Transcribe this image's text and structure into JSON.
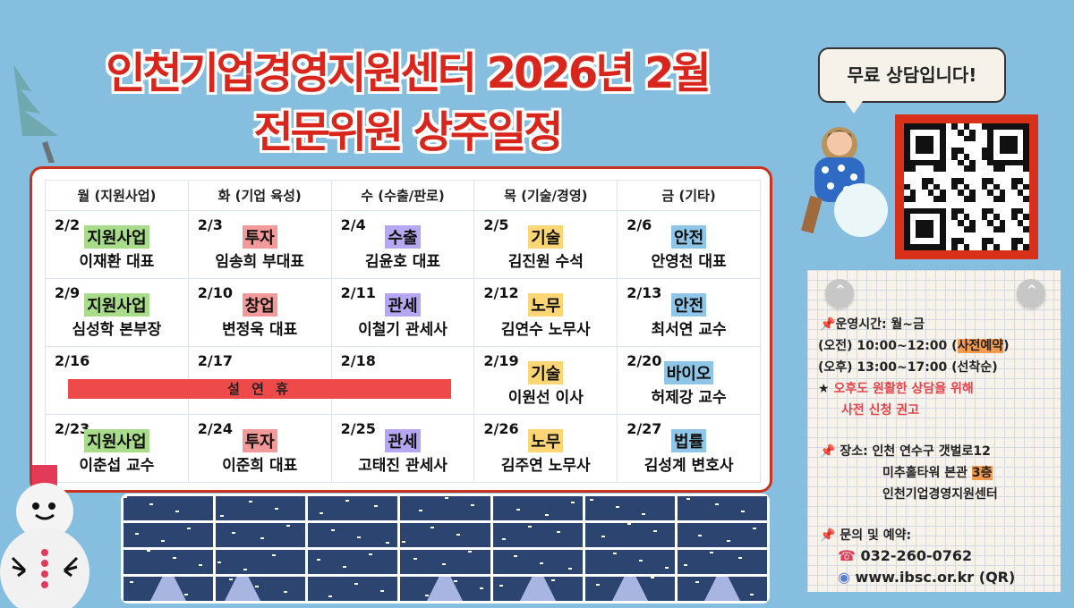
{
  "header": {
    "title_line1": "인천기업경영지원센터 2026년 2월",
    "title_line2": "전문위원 상주일정"
  },
  "colors": {
    "background": "#85bedf",
    "title_red": "#d9261c",
    "board_border": "#c9321f",
    "holiday_bar": "#ef4a4a",
    "tag_green": "#a9dc8a",
    "tag_pink": "#f29999",
    "tag_purple": "#b7a6f0",
    "tag_yellow": "#fcd575",
    "tag_blue": "#8fc5e6",
    "highlight_orange": "#f49a4e"
  },
  "schedule": {
    "columns": [
      "월 (지원사업)",
      "화 (기업 육성)",
      "수 (수출/판로)",
      "목 (기술/경영)",
      "금 (기타)"
    ],
    "weeks": [
      [
        {
          "date": "2/2",
          "tag": "지원사업",
          "tag_color": "#a9dc8a",
          "person": "이재환 대표"
        },
        {
          "date": "2/3",
          "tag": "투자",
          "tag_color": "#f29999",
          "person": "임송희 부대표"
        },
        {
          "date": "2/4",
          "tag": "수출",
          "tag_color": "#b7a6f0",
          "person": "김윤호 대표"
        },
        {
          "date": "2/5",
          "tag": "기술",
          "tag_color": "#fcd575",
          "person": "김진원 수석"
        },
        {
          "date": "2/6",
          "tag": "안전",
          "tag_color": "#8fc5e6",
          "person": "안영천 대표"
        }
      ],
      [
        {
          "date": "2/9",
          "tag": "지원사업",
          "tag_color": "#a9dc8a",
          "person": "심성학 본부장"
        },
        {
          "date": "2/10",
          "tag": "창업",
          "tag_color": "#f29999",
          "person": "변정욱 대표"
        },
        {
          "date": "2/11",
          "tag": "관세",
          "tag_color": "#b7a6f0",
          "person": "이철기 관세사"
        },
        {
          "date": "2/12",
          "tag": "노무",
          "tag_color": "#fcd575",
          "person": "김연수 노무사"
        },
        {
          "date": "2/13",
          "tag": "안전",
          "tag_color": "#8fc5e6",
          "person": "최서연 교수"
        }
      ],
      [
        {
          "date": "2/16",
          "tag": "",
          "tag_color": "",
          "person": ""
        },
        {
          "date": "2/17",
          "tag": "",
          "tag_color": "",
          "person": ""
        },
        {
          "date": "2/18",
          "tag": "",
          "tag_color": "",
          "person": ""
        },
        {
          "date": "2/19",
          "tag": "기술",
          "tag_color": "#fcd575",
          "person": "이원선 이사"
        },
        {
          "date": "2/20",
          "tag": "바이오",
          "tag_color": "#8fc5e6",
          "person": "허제강 교수"
        }
      ],
      [
        {
          "date": "2/23",
          "tag": "지원사업",
          "tag_color": "#a9dc8a",
          "person": "이춘섭 교수"
        },
        {
          "date": "2/24",
          "tag": "투자",
          "tag_color": "#f29999",
          "person": "이준희 대표"
        },
        {
          "date": "2/25",
          "tag": "관세",
          "tag_color": "#b7a6f0",
          "person": "고태진 관세사"
        },
        {
          "date": "2/26",
          "tag": "노무",
          "tag_color": "#fcd575",
          "person": "김주연 노무사"
        },
        {
          "date": "2/27",
          "tag": "법률",
          "tag_color": "#8fc5e6",
          "person": "김성계 변호사"
        }
      ]
    ],
    "holiday_label": "설 연 휴"
  },
  "sidebar": {
    "bubble_text": "무료 상담입니다!",
    "qr_label": "QR",
    "hours_title": "운영시간: 월~금",
    "hours_am": "(오전) 10:00~12:00 (",
    "hours_am_note": "사전예약",
    "hours_am_close": ")",
    "hours_pm": "(오후) 13:00~17:00 (선착순)",
    "notice_star": "★",
    "notice_line1": "오후도 원활한 상담을 위해",
    "notice_line2": "사전 신청 권고",
    "place_label": "장소: 인천 연수구 갯벌로12",
    "place_line2": "미추홀타워 본관 ",
    "place_floor": "3층",
    "place_line3": "인천기업경영지원센터",
    "contact_label": "문의 및 예약:",
    "phone": "032-260-0762",
    "website": "www.ibsc.or.kr (QR)"
  }
}
